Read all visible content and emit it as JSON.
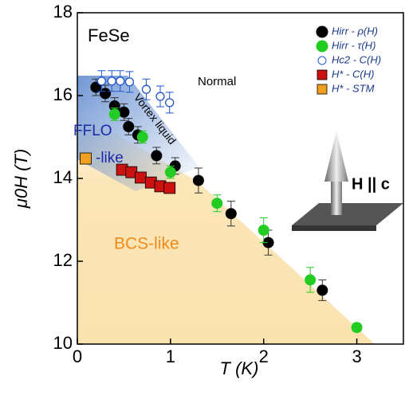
{
  "chart_data": {
    "type": "scatter",
    "title": "FeSe",
    "x_label": "T (K)",
    "y_label": "μ0H (T)",
    "xlim": [
      0,
      3.5
    ],
    "ylim": [
      10,
      18
    ],
    "xticks": [
      0,
      1,
      2,
      3
    ],
    "yticks": [
      10,
      12,
      14,
      16,
      18
    ],
    "annotations": [
      "Normal",
      "Vortex liquid",
      "FFLO",
      "-like",
      "BCS-like",
      "H || c"
    ],
    "series": [
      {
        "name": "Hirr - ρ(H)",
        "color": "#000000",
        "marker": "filled-circle",
        "x": [
          0.2,
          0.3,
          0.4,
          0.5,
          0.55,
          0.65,
          0.85,
          1.05,
          1.3,
          1.65,
          2.05,
          2.63
        ],
        "values": [
          16.2,
          16.05,
          15.75,
          15.6,
          15.25,
          15.05,
          14.55,
          14.3,
          13.95,
          13.15,
          12.45,
          11.3
        ],
        "errors": [
          0.2,
          0.2,
          0.2,
          0.2,
          0.2,
          0.2,
          0.2,
          0.2,
          0.3,
          0.3,
          0.3,
          0.25
        ]
      },
      {
        "name": "Hirr - τ(H)",
        "color": "#22cc22",
        "marker": "filled-circle",
        "x": [
          0.4,
          0.7,
          1.0,
          1.5,
          2.0,
          2.5,
          3.0
        ],
        "values": [
          15.55,
          15.0,
          14.15,
          13.4,
          12.75,
          11.55,
          10.4
        ],
        "errors": [
          0.15,
          0.15,
          0.15,
          0.2,
          0.3,
          0.3,
          0.1
        ]
      },
      {
        "name": "Hc2 - C(H)",
        "color": "#2255cc",
        "marker": "open-circle",
        "x": [
          0.26,
          0.37,
          0.46,
          0.56,
          0.74,
          0.89,
          0.99
        ],
        "values": [
          16.35,
          16.35,
          16.35,
          16.33,
          16.15,
          15.98,
          15.83
        ],
        "errors": [
          0.25,
          0.25,
          0.25,
          0.25,
          0.25,
          0.25,
          0.25
        ]
      },
      {
        "name": "H* - C(H)",
        "color": "#cc1111",
        "marker": "square",
        "x": [
          0.48,
          0.58,
          0.68,
          0.79,
          0.89,
          0.99
        ],
        "values": [
          14.21,
          14.15,
          14.02,
          13.9,
          13.81,
          13.77
        ]
      },
      {
        "name": "H* - STM",
        "color": "#f0a020",
        "marker": "square",
        "x": [
          0.09
        ],
        "values": [
          14.48
        ]
      }
    ]
  }
}
